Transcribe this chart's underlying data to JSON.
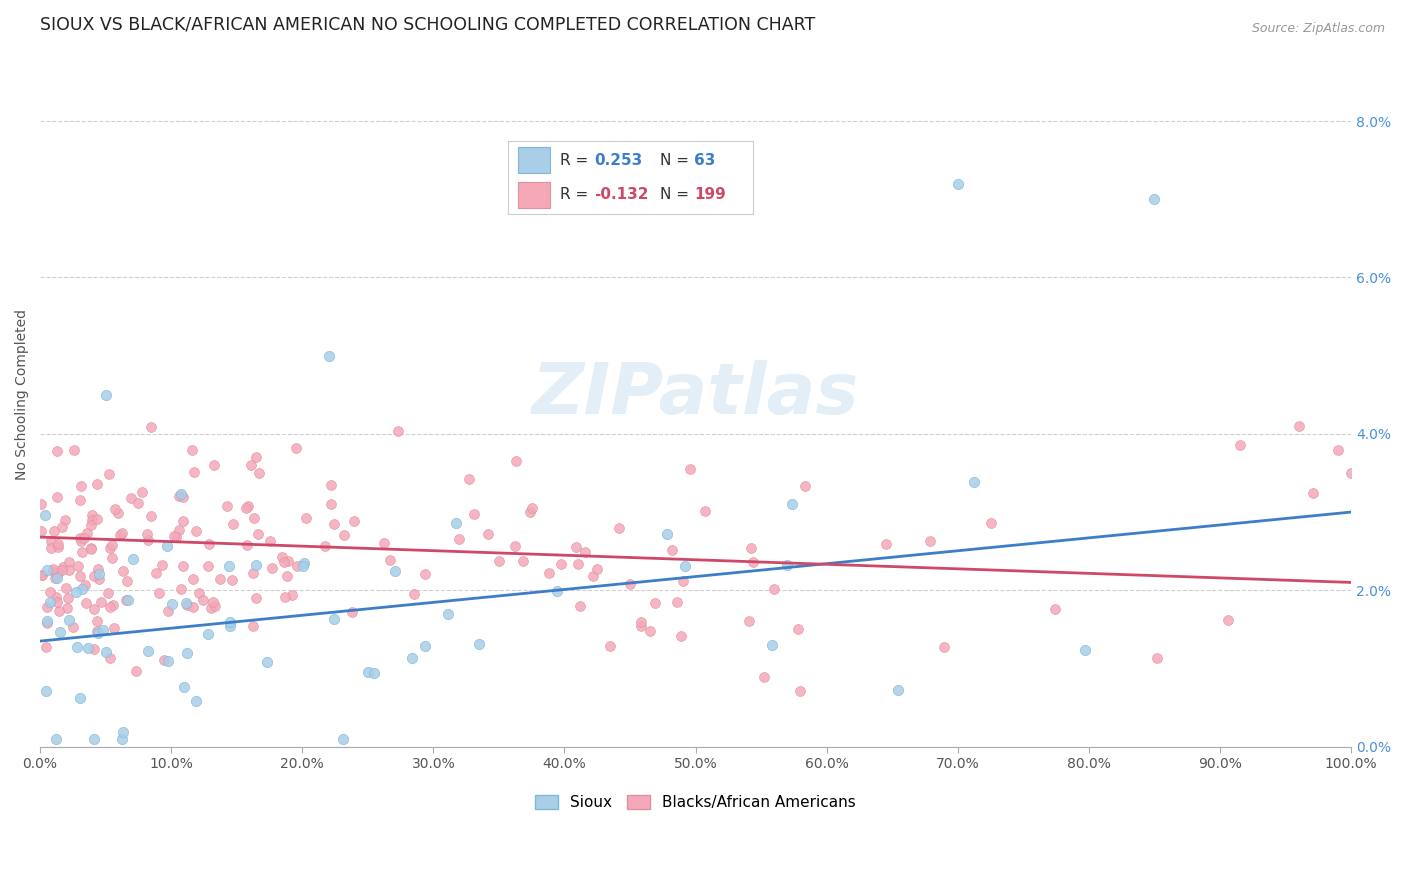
{
  "title": "SIOUX VS BLACK/AFRICAN AMERICAN NO SCHOOLING COMPLETED CORRELATION CHART",
  "source": "Source: ZipAtlas.com",
  "ylabel": "No Schooling Completed",
  "x_tick_labels": [
    "0.0%",
    "10.0%",
    "20.0%",
    "30.0%",
    "40.0%",
    "50.0%",
    "60.0%",
    "70.0%",
    "80.0%",
    "90.0%",
    "100.0%"
  ],
  "y_tick_labels": [
    "0.0%",
    "2.0%",
    "4.0%",
    "6.0%",
    "8.0%"
  ],
  "y_ticks": [
    0,
    2,
    4,
    6,
    8
  ],
  "x_ticks": [
    0,
    10,
    20,
    30,
    40,
    50,
    60,
    70,
    80,
    90,
    100
  ],
  "xlim": [
    0,
    100
  ],
  "ylim": [
    0,
    9.0
  ],
  "R_sioux": 0.253,
  "N_sioux": 63,
  "R_black": -0.132,
  "N_black": 199,
  "blue_scatter": "#A8CEE8",
  "pink_scatter": "#F4A8B8",
  "blue_line": "#3C7EC8",
  "pink_line": "#D04868",
  "blue_text": "#3C7EC8",
  "pink_text": "#D04868",
  "tick_color": "#4A90D9",
  "title_fontsize": 12.5,
  "tick_fontsize": 10,
  "label_fontsize": 10,
  "source_fontsize": 9,
  "watermark_text": "ZIPatlas",
  "grid_color": "#CCCCCC",
  "legend_text_color": "#333333",
  "sioux_line_start_y": 1.35,
  "sioux_line_end_y": 3.0,
  "black_line_start_y": 2.68,
  "black_line_end_y": 2.1
}
